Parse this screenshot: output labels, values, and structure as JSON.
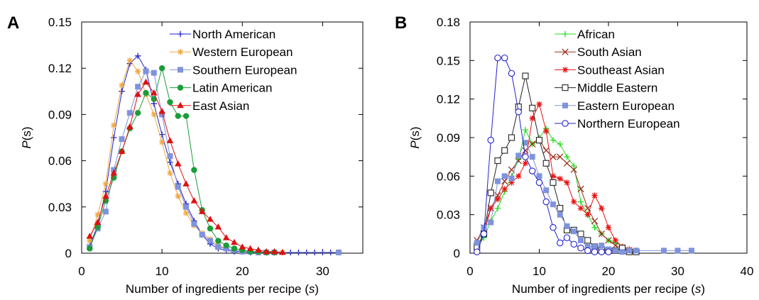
{
  "chart_data": [
    {
      "panel_label": "A",
      "type": "line",
      "xlabel": "Number of ingredients per recipe (s)",
      "xlabel_main": "Number of ingredients per recipe (",
      "xlabel_var": "s",
      "xlabel_end": ")",
      "ylabel": "P(s)",
      "ylabel_var": "P",
      "ylabel_rest": "(s)",
      "xlim": [
        0,
        35
      ],
      "ylim": [
        0,
        0.15
      ],
      "xticks": [
        0,
        10,
        20,
        30
      ],
      "yticks": [
        0,
        0.03,
        0.06,
        0.09,
        0.12,
        0.15
      ],
      "ytick_labels": [
        "0",
        "0.03",
        "0.06",
        "0.09",
        "0.12",
        "0.15"
      ],
      "legend_position": "top-right",
      "series": [
        {
          "name": "North American",
          "color": "#2222cc",
          "marker": "plus",
          "x": [
            1,
            2,
            3,
            4,
            5,
            6,
            7,
            8,
            9,
            10,
            11,
            12,
            13,
            14,
            15,
            16,
            17,
            18,
            19,
            20,
            21,
            22,
            23,
            24,
            25,
            26,
            27,
            28,
            29,
            30,
            31,
            32
          ],
          "y": [
            0.005,
            0.018,
            0.04,
            0.075,
            0.105,
            0.123,
            0.128,
            0.119,
            0.097,
            0.077,
            0.059,
            0.045,
            0.032,
            0.021,
            0.012,
            0.006,
            0.003,
            0.002,
            0.001,
            0.001,
            0.0005,
            0.0005,
            0.0005,
            0.0005,
            0.0005,
            0.0005,
            0.0005,
            0.0005,
            0.0005,
            0.0005,
            0.0005,
            0.0005
          ]
        },
        {
          "name": "Western European",
          "color": "#f0a840",
          "marker": "star",
          "x": [
            1,
            2,
            3,
            4,
            5,
            6,
            7,
            8,
            9,
            10,
            11,
            12,
            13,
            14,
            15,
            16,
            17,
            18,
            19,
            20,
            21,
            22,
            23,
            24,
            25
          ],
          "y": [
            0.008,
            0.025,
            0.045,
            0.083,
            0.109,
            0.125,
            0.118,
            0.103,
            0.09,
            0.072,
            0.052,
            0.037,
            0.026,
            0.018,
            0.013,
            0.009,
            0.005,
            0.003,
            0.002,
            0.001,
            0.001,
            0.0005,
            0.0005,
            0.0005,
            0.0005
          ]
        },
        {
          "name": "Southern European",
          "color": "#7f93dd",
          "marker": "square",
          "x": [
            1,
            2,
            3,
            4,
            5,
            6,
            7,
            8,
            9,
            10,
            11,
            12,
            13,
            14,
            15,
            16,
            17,
            18,
            19,
            20,
            21,
            22,
            23,
            24,
            32
          ],
          "y": [
            0.004,
            0.016,
            0.027,
            0.054,
            0.074,
            0.091,
            0.108,
            0.118,
            0.117,
            0.09,
            0.063,
            0.043,
            0.03,
            0.019,
            0.012,
            0.008,
            0.004,
            0.003,
            0.002,
            0.001,
            0.001,
            0.0005,
            0.0005,
            0.0005,
            0.0005
          ]
        },
        {
          "name": "Latin American",
          "color": "#1a9c3a",
          "marker": "circle",
          "x": [
            1,
            2,
            3,
            4,
            5,
            6,
            7,
            8,
            9,
            10,
            11,
            12,
            13,
            14,
            15,
            16,
            17,
            18,
            19,
            20,
            21,
            22,
            23,
            24
          ],
          "y": [
            0.003,
            0.017,
            0.034,
            0.049,
            0.066,
            0.081,
            0.091,
            0.104,
            0.1,
            0.12,
            0.098,
            0.089,
            0.089,
            0.054,
            0.028,
            0.016,
            0.008,
            0.005,
            0.003,
            0.002,
            0.001,
            0.001,
            0.0005,
            0.0005
          ]
        },
        {
          "name": "East Asian",
          "color": "#dd1111",
          "marker": "triangle",
          "x": [
            1,
            2,
            3,
            4,
            5,
            6,
            7,
            8,
            9,
            10,
            11,
            12,
            13,
            14,
            15,
            16,
            17,
            18,
            19,
            20,
            21,
            22,
            23,
            24,
            25
          ],
          "y": [
            0.011,
            0.02,
            0.037,
            0.052,
            0.066,
            0.082,
            0.103,
            0.111,
            0.104,
            0.092,
            0.073,
            0.058,
            0.045,
            0.034,
            0.027,
            0.022,
            0.017,
            0.01,
            0.007,
            0.004,
            0.003,
            0.002,
            0.001,
            0.001,
            0.0005
          ]
        }
      ]
    },
    {
      "panel_label": "B",
      "type": "line",
      "xlabel": "Number of ingredients per recipe (s)",
      "xlabel_main": "Number of ingredients per recipe (",
      "xlabel_var": "s",
      "xlabel_end": ")",
      "ylabel": "P(s)",
      "ylabel_var": "P",
      "ylabel_rest": "(s)",
      "xlim": [
        0,
        40
      ],
      "ylim": [
        0,
        0.18
      ],
      "xticks": [
        0,
        10,
        20,
        30,
        40
      ],
      "yticks": [
        0,
        0.03,
        0.06,
        0.09,
        0.12,
        0.15,
        0.18
      ],
      "ytick_labels": [
        "0",
        "0.03",
        "0.06",
        "0.09",
        "0.12",
        "0.15",
        "0.18"
      ],
      "legend_position": "top-right",
      "series": [
        {
          "name": "African",
          "color": "#22dd22",
          "marker": "plus",
          "x": [
            1,
            2,
            3,
            4,
            5,
            6,
            7,
            8,
            9,
            10,
            11,
            12,
            13,
            14,
            15,
            16,
            17,
            18,
            19,
            20,
            21,
            22,
            23,
            24
          ],
          "y": [
            0.005,
            0.012,
            0.025,
            0.035,
            0.048,
            0.06,
            0.073,
            0.096,
            0.085,
            0.09,
            0.097,
            0.088,
            0.085,
            0.075,
            0.068,
            0.04,
            0.03,
            0.02,
            0.015,
            0.01,
            0.008,
            0.005,
            0.003,
            0.002
          ]
        },
        {
          "name": "South Asian",
          "color": "#993322",
          "marker": "x",
          "x": [
            1,
            2,
            3,
            4,
            5,
            6,
            7,
            8,
            9,
            10,
            11,
            12,
            13,
            14,
            15,
            16,
            17,
            18,
            19,
            20,
            21,
            22,
            23,
            24
          ],
          "y": [
            0.01,
            0.02,
            0.035,
            0.045,
            0.056,
            0.065,
            0.072,
            0.08,
            0.085,
            0.088,
            0.08,
            0.075,
            0.075,
            0.07,
            0.065,
            0.05,
            0.035,
            0.025,
            0.015,
            0.01,
            0.006,
            0.004,
            0.002,
            0.001
          ]
        },
        {
          "name": "Southeast Asian",
          "color": "#ee1111",
          "marker": "star",
          "x": [
            1,
            2,
            3,
            4,
            5,
            6,
            7,
            8,
            9,
            10,
            11,
            12,
            13,
            14,
            15,
            16,
            17,
            18,
            19,
            20,
            21,
            22,
            23,
            24
          ],
          "y": [
            0.005,
            0.015,
            0.035,
            0.042,
            0.05,
            0.055,
            0.06,
            0.07,
            0.105,
            0.116,
            0.095,
            0.06,
            0.058,
            0.055,
            0.04,
            0.035,
            0.03,
            0.045,
            0.035,
            0.02,
            0.01,
            0.005,
            0.003,
            0.002
          ]
        },
        {
          "name": "Middle Eastern",
          "color": "#222222",
          "marker": "square-open",
          "x": [
            1,
            2,
            3,
            4,
            5,
            6,
            7,
            8,
            9,
            10,
            11,
            12,
            13,
            14,
            15,
            16,
            17,
            18,
            19,
            20,
            21,
            22,
            23,
            24
          ],
          "y": [
            0.005,
            0.015,
            0.047,
            0.072,
            0.08,
            0.09,
            0.114,
            0.138,
            0.113,
            0.088,
            0.07,
            0.055,
            0.035,
            0.018,
            0.018,
            0.015,
            0.01,
            0.005,
            0.003,
            0.002,
            0.002,
            0.004,
            0.001,
            0.001
          ]
        },
        {
          "name": "Eastern European",
          "color": "#7f93dd",
          "marker": "square",
          "x": [
            1,
            2,
            3,
            4,
            5,
            6,
            7,
            8,
            9,
            10,
            11,
            12,
            13,
            14,
            15,
            16,
            17,
            18,
            19,
            20,
            21,
            22,
            23,
            24,
            28,
            30,
            32
          ],
          "y": [
            0.008,
            0.02,
            0.024,
            0.056,
            0.06,
            0.058,
            0.076,
            0.086,
            0.075,
            0.06,
            0.049,
            0.038,
            0.03,
            0.021,
            0.017,
            0.01,
            0.005,
            0.005,
            0.006,
            0.003,
            0.002,
            0.001,
            0.002,
            0.002,
            0.002,
            0.002,
            0.002
          ]
        },
        {
          "name": "Northern European",
          "color": "#2222cc",
          "marker": "circle-open",
          "x": [
            1,
            2,
            3,
            4,
            5,
            6,
            7,
            8,
            9,
            10,
            11,
            12,
            13,
            14,
            15,
            16,
            17,
            18,
            19,
            20
          ],
          "y": [
            0.001,
            0.015,
            0.088,
            0.152,
            0.152,
            0.14,
            0.11,
            0.075,
            0.064,
            0.055,
            0.04,
            0.02,
            0.008,
            0.012,
            0.007,
            0.004,
            0.002,
            0.001,
            0.001,
            0.001
          ]
        }
      ]
    }
  ]
}
